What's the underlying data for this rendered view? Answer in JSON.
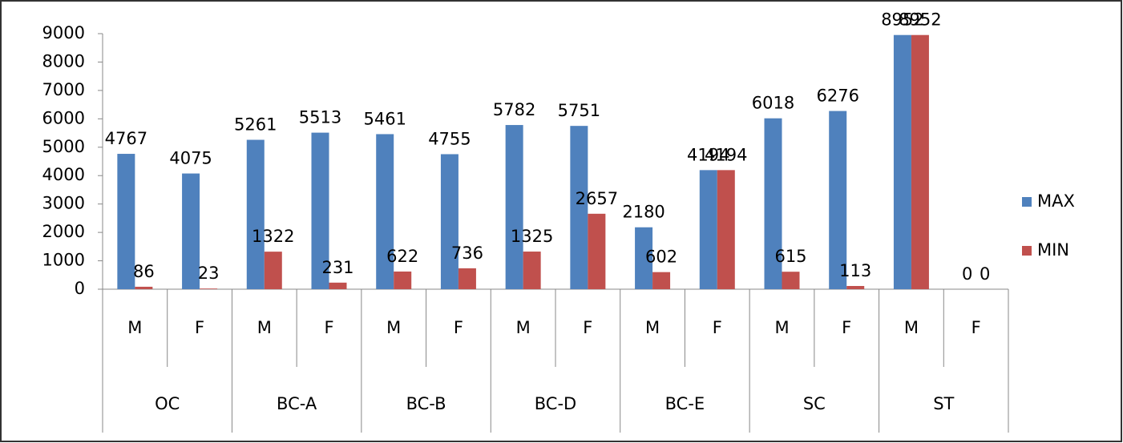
{
  "chart_data": {
    "type": "bar",
    "categories": [
      "M",
      "F",
      "M",
      "F",
      "M",
      "F",
      "M",
      "F",
      "M",
      "F",
      "M",
      "F",
      "M",
      "F"
    ],
    "groups": [
      "OC",
      "BC-A",
      "BC-B",
      "BC-D",
      "BC-E",
      "SC",
      "ST"
    ],
    "series": [
      {
        "name": "MAX",
        "color": "#4f81bd",
        "values": [
          4767,
          4075,
          5261,
          5513,
          5461,
          4755,
          5782,
          5751,
          2180,
          4194,
          6018,
          6276,
          8952,
          0
        ]
      },
      {
        "name": "MIN",
        "color": "#c0504d",
        "values": [
          86,
          23,
          1322,
          231,
          622,
          736,
          1325,
          2657,
          602,
          4194,
          615,
          113,
          8952,
          0
        ]
      }
    ],
    "ylim": [
      0,
      9000
    ],
    "yticks": [
      0,
      1000,
      2000,
      3000,
      4000,
      5000,
      6000,
      7000,
      8000,
      9000
    ],
    "grid": false,
    "legend": "right"
  }
}
